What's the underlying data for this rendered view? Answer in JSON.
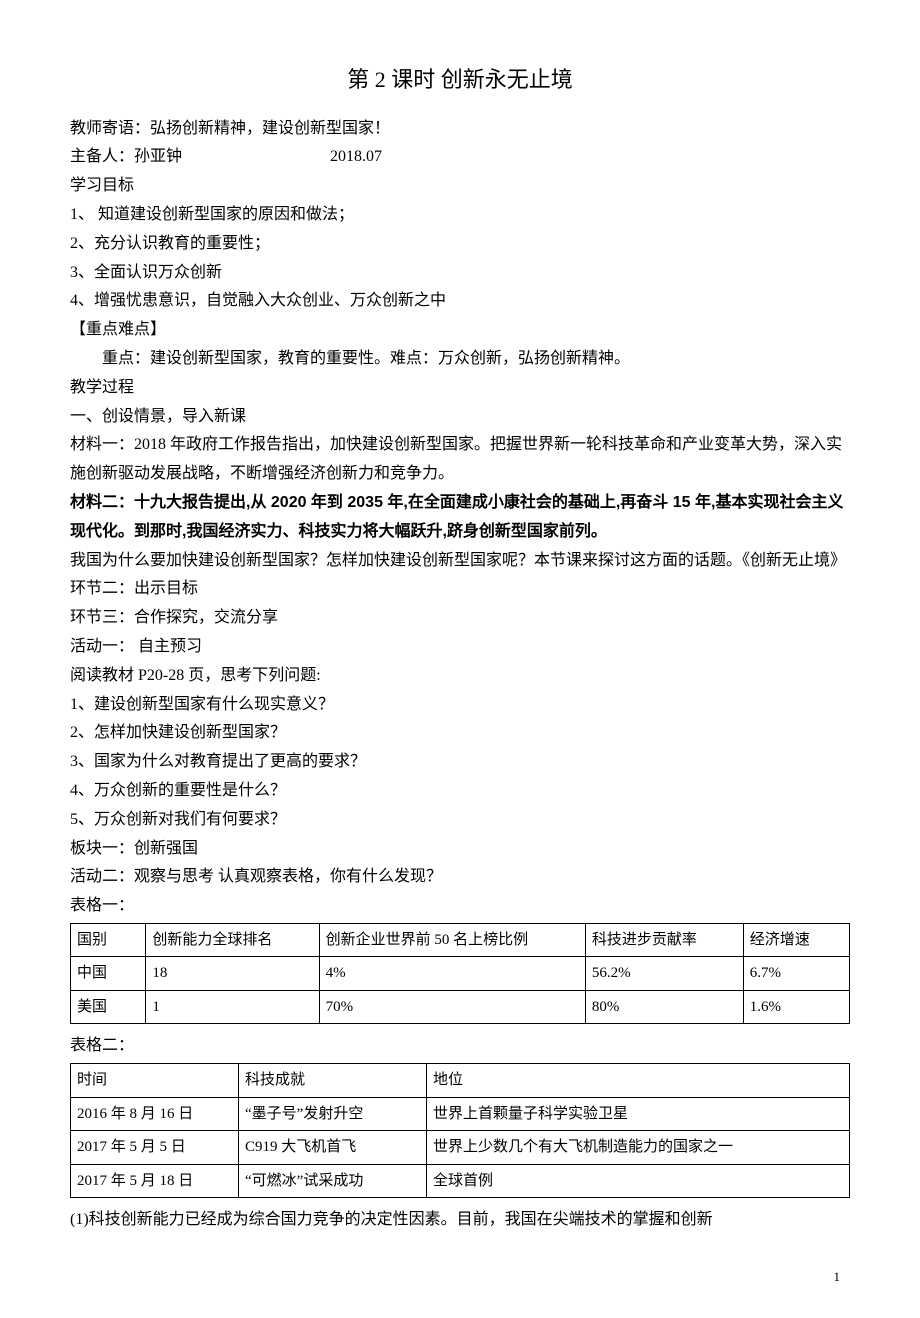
{
  "title": "第 2 课时  创新永无止境",
  "motto": "教师寄语：弘扬创新精神，建设创新型国家！",
  "author_label": "主备人：孙亚钟",
  "date": "2018.07",
  "objectives_heading": "学习目标",
  "objectives": [
    "1、 知道建设创新型国家的原因和做法；",
    "2、充分认识教育的重要性；",
    "3、全面认识万众创新",
    "4、增强忧患意识，自觉融入大众创业、万众创新之中"
  ],
  "key_heading": "【重点难点】",
  "key_text": "重点：建设创新型国家，教育的重要性。难点：万众创新，弘扬创新精神。",
  "process_heading": "教学过程",
  "section1_heading": "一、创设情景，导入新课",
  "material1": "材料一：2018 年政府工作报告指出，加快建设创新型国家。把握世界新一轮科技革命和产业变革大势，深入实施创新驱动发展战略，不断增强经济创新力和竞争力。",
  "material2": "材料二：十九大报告提出,从 2020 年到 2035 年,在全面建成小康社会的基础上,再奋斗 15 年,基本实现社会主义现代化。到那时,我国经济实力、科技实力将大幅跃升,跻身创新型国家前列。",
  "material_followup": "我国为什么要加快建设创新型国家？怎样加快建设创新型国家呢？本节课来探讨这方面的话题。《创新无止境》",
  "step2": "环节二：出示目标",
  "step3": "环节三：合作探究，交流分享",
  "activity1_heading": "活动一：  自主预习",
  "activity1_instruction": "阅读教材 P20-28 页，思考下列问题:",
  "questions": [
    "1、建设创新型国家有什么现实意义？",
    "2、怎样加快建设创新型国家？",
    "3、国家为什么对教育提出了更高的要求？",
    "4、万众创新的重要性是什么？",
    "5、万众创新对我们有何要求？"
  ],
  "block1_heading": "板块一：创新强国",
  "activity2_heading": "活动二：观察与思考    认真观察表格，你有什么发现？",
  "table1_label": "表格一：",
  "table1": {
    "headers": [
      "国别",
      "创新能力全球排名",
      "创新企业世界前 50 名上榜比例",
      "科技进步贡献率",
      "经济增速"
    ],
    "rows": [
      [
        "中国",
        "18",
        "4%",
        "56.2%",
        "6.7%"
      ],
      [
        "美国",
        "1",
        "70%",
        "80%",
        "1.6%"
      ]
    ]
  },
  "table2_label": "表格二：",
  "table2": {
    "headers": [
      "时间",
      "科技成就",
      "地位"
    ],
    "rows": [
      [
        "2016 年 8 月 16 日",
        "“墨子号”发射升空",
        "世界上首颗量子科学实验卫星"
      ],
      [
        "2017 年 5 月 5 日",
        "C919 大飞机首飞",
        "世界上少数几个有大飞机制造能力的国家之一"
      ],
      [
        "2017 年 5 月 18 日",
        "“可燃冰”试采成功",
        "全球首例"
      ]
    ]
  },
  "conclusion": "(1)科技创新能力已经成为综合国力竞争的决定性因素。目前，我国在尖端技术的掌握和创新",
  "page_number": "1"
}
